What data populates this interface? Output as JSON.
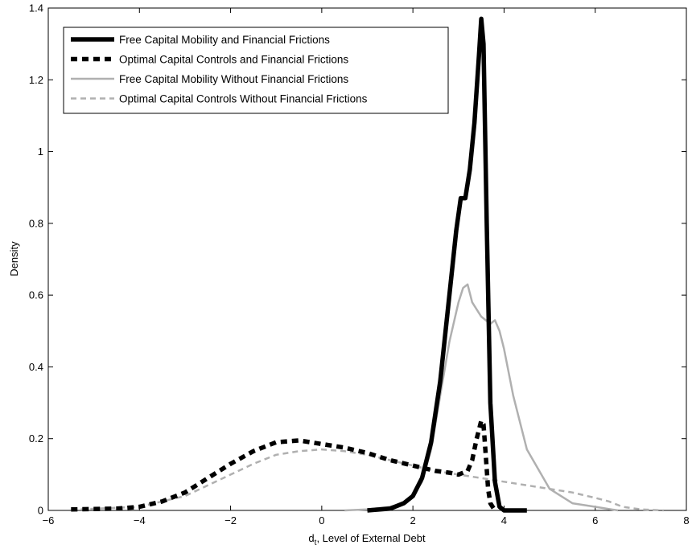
{
  "chart_data": {
    "type": "line",
    "title": "",
    "xlabel": "d",
    "xlabel_subscript": "t",
    "xlabel_suffix": ", Level of External Debt",
    "ylabel": "Density",
    "xlim": [
      -6,
      8
    ],
    "ylim": [
      0,
      1.4
    ],
    "xticks": [
      -6,
      -4,
      -2,
      0,
      2,
      4,
      6,
      8
    ],
    "xtick_labels": [
      "−6",
      "−4",
      "−2",
      "0",
      "2",
      "4",
      "6",
      "8"
    ],
    "yticks": [
      0,
      0.2,
      0.4,
      0.6,
      0.8,
      1,
      1.2,
      1.4
    ],
    "ytick_labels": [
      "0",
      "0.2",
      "0.4",
      "0.6",
      "0.8",
      "1",
      "1.2",
      "1.4"
    ],
    "grid": false,
    "legend_position": "top-left",
    "series": [
      {
        "name": "Free Capital Mobility and Financial Frictions",
        "color": "#000000",
        "style": "solid-thick",
        "x": [
          1.0,
          1.5,
          1.8,
          2.0,
          2.2,
          2.4,
          2.6,
          2.8,
          2.95,
          3.05,
          3.15,
          3.25,
          3.35,
          3.45,
          3.5,
          3.55,
          3.62,
          3.7,
          3.8,
          3.9,
          4.0,
          4.5
        ],
        "y": [
          0.0,
          0.005,
          0.02,
          0.04,
          0.09,
          0.19,
          0.36,
          0.6,
          0.78,
          0.87,
          0.87,
          0.95,
          1.08,
          1.27,
          1.37,
          1.3,
          0.8,
          0.3,
          0.08,
          0.01,
          0.0,
          0.0
        ]
      },
      {
        "name": "Optimal Capital Controls and Financial Frictions",
        "color": "#000000",
        "style": "dashed-thick",
        "x": [
          -5.5,
          -4.5,
          -4.0,
          -3.5,
          -3.0,
          -2.5,
          -2.0,
          -1.5,
          -1.0,
          -0.5,
          0.0,
          0.5,
          1.0,
          1.5,
          2.0,
          2.5,
          2.8,
          3.0,
          3.2,
          3.3,
          3.4,
          3.5,
          3.55,
          3.6,
          3.65,
          3.7,
          3.8
        ],
        "y": [
          0.003,
          0.005,
          0.01,
          0.025,
          0.05,
          0.09,
          0.13,
          0.165,
          0.19,
          0.195,
          0.185,
          0.175,
          0.16,
          0.14,
          0.125,
          0.11,
          0.105,
          0.1,
          0.11,
          0.14,
          0.2,
          0.25,
          0.24,
          0.15,
          0.06,
          0.02,
          0.0
        ]
      },
      {
        "name": "Free Capital Mobility Without Financial Frictions",
        "color": "#b0b0b0",
        "style": "solid",
        "x": [
          0.5,
          1.0,
          1.5,
          1.8,
          2.0,
          2.2,
          2.4,
          2.6,
          2.8,
          3.0,
          3.1,
          3.2,
          3.3,
          3.5,
          3.7,
          3.8,
          3.9,
          4.0,
          4.2,
          4.5,
          5.0,
          5.5,
          6.0,
          6.5
        ],
        "y": [
          0.0,
          0.003,
          0.01,
          0.02,
          0.04,
          0.08,
          0.17,
          0.32,
          0.47,
          0.58,
          0.62,
          0.63,
          0.58,
          0.54,
          0.52,
          0.53,
          0.5,
          0.45,
          0.32,
          0.17,
          0.06,
          0.02,
          0.01,
          0.0
        ]
      },
      {
        "name": "Optimal Capital Controls Without Financial Frictions",
        "color": "#b0b0b0",
        "style": "dashed",
        "x": [
          -5.5,
          -4.0,
          -3.0,
          -2.5,
          -2.0,
          -1.5,
          -1.0,
          -0.5,
          0.0,
          0.5,
          1.0,
          1.5,
          2.0,
          2.5,
          3.0,
          3.5,
          4.0,
          4.5,
          5.0,
          5.5,
          6.0,
          6.3,
          6.6,
          7.0,
          7.5
        ],
        "y": [
          0.002,
          0.01,
          0.04,
          0.07,
          0.1,
          0.13,
          0.155,
          0.165,
          0.17,
          0.165,
          0.155,
          0.14,
          0.125,
          0.11,
          0.1,
          0.09,
          0.08,
          0.07,
          0.06,
          0.05,
          0.035,
          0.025,
          0.01,
          0.003,
          0.0
        ]
      }
    ]
  }
}
